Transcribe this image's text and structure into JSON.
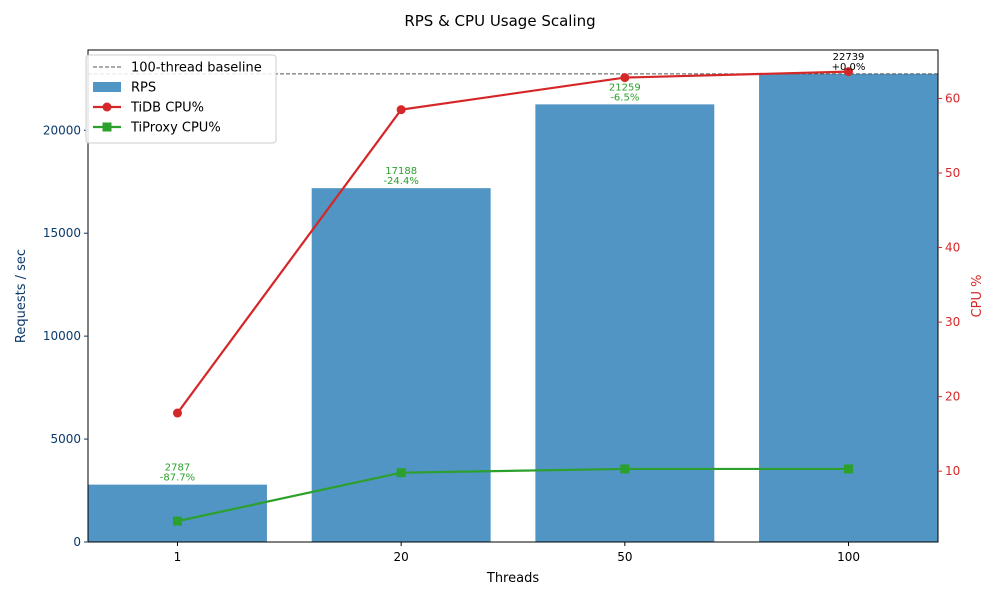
{
  "chart_data": {
    "type": "bar",
    "title": "RPS & CPU Usage Scaling",
    "xlabel": "Threads",
    "ylabel_left": "Requests / sec",
    "ylabel_right": "CPU %",
    "categories": [
      "1",
      "20",
      "50",
      "100"
    ],
    "ylim_left": [
      0,
      23900
    ],
    "ylim_right": [
      0.5,
      66.5
    ],
    "yticks_left": [
      0,
      5000,
      10000,
      15000,
      20000
    ],
    "yticks_right": [
      10,
      20,
      30,
      40,
      50,
      60
    ],
    "grid": false,
    "legend_position": "top-left",
    "bars": {
      "name": "RPS",
      "axis": "left",
      "color": "#1f77b4",
      "values": [
        2787,
        17188,
        21259,
        22739
      ],
      "labels": [
        "2787",
        "17188",
        "21259",
        "22739"
      ],
      "change_labels": [
        "-87.7%",
        "-24.4%",
        "-6.5%",
        "+0.0%"
      ],
      "label_colors": [
        "#2ca02c",
        "#2ca02c",
        "#2ca02c",
        "#000000"
      ]
    },
    "baseline": {
      "name": "100-thread baseline",
      "value": 22739,
      "color": "#555555"
    },
    "series": [
      {
        "name": "TiDB CPU%",
        "axis": "right",
        "color": "#d62728",
        "marker": "circle",
        "values": [
          17.8,
          58.5,
          62.8,
          63.6
        ]
      },
      {
        "name": "TiProxy CPU%",
        "axis": "right",
        "color": "#2ca02c",
        "marker": "square",
        "values": [
          3.3,
          9.8,
          10.3,
          10.3
        ]
      }
    ],
    "left_axis_color": "#0b3a6b",
    "right_axis_color": "#d62728"
  }
}
